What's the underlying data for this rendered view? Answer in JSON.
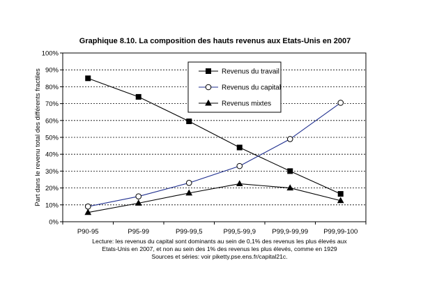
{
  "chart_data": {
    "type": "line",
    "title": "Graphique 8.10. La composition des hauts revenus aux Etats-Unis en 2007",
    "ylabel": "Part dans le revenu total des différents fractiles",
    "xlabel": "",
    "categories": [
      "P90-95",
      "P95-99",
      "P99-99,5",
      "P99,5-99,9",
      "P99,9-99,99",
      "P99,99-100"
    ],
    "ylim": [
      0,
      100
    ],
    "yticks": [
      "0%",
      "10%",
      "20%",
      "30%",
      "40%",
      "50%",
      "60%",
      "70%",
      "80%",
      "90%",
      "100%"
    ],
    "grid": true,
    "legend_position": "top-center",
    "series": [
      {
        "name": "Revenus du travail",
        "marker": "square-filled",
        "color": "#000000",
        "values": [
          85,
          74,
          59.5,
          44,
          30,
          16.5
        ]
      },
      {
        "name": "Revenus du capital",
        "marker": "circle-open",
        "color": "#1f2f8f",
        "values": [
          9,
          15,
          23,
          33,
          49,
          70.5
        ]
      },
      {
        "name": "Revenus mixtes",
        "marker": "triangle-filled",
        "color": "#000000",
        "values": [
          5.5,
          11,
          17,
          22.5,
          20,
          12.5
        ]
      }
    ]
  },
  "caption": {
    "line1": "Lecture: les revenus du capital sont dominants au sein de 0,1% des revenus les plus élevés aux",
    "line2": "Etats-Unis en 2007, et non au sein des 1% des revenus les plus élevés, comme en 1929",
    "line3": "Sources et séries: voir piketty.pse.ens.fr/capital21c."
  }
}
